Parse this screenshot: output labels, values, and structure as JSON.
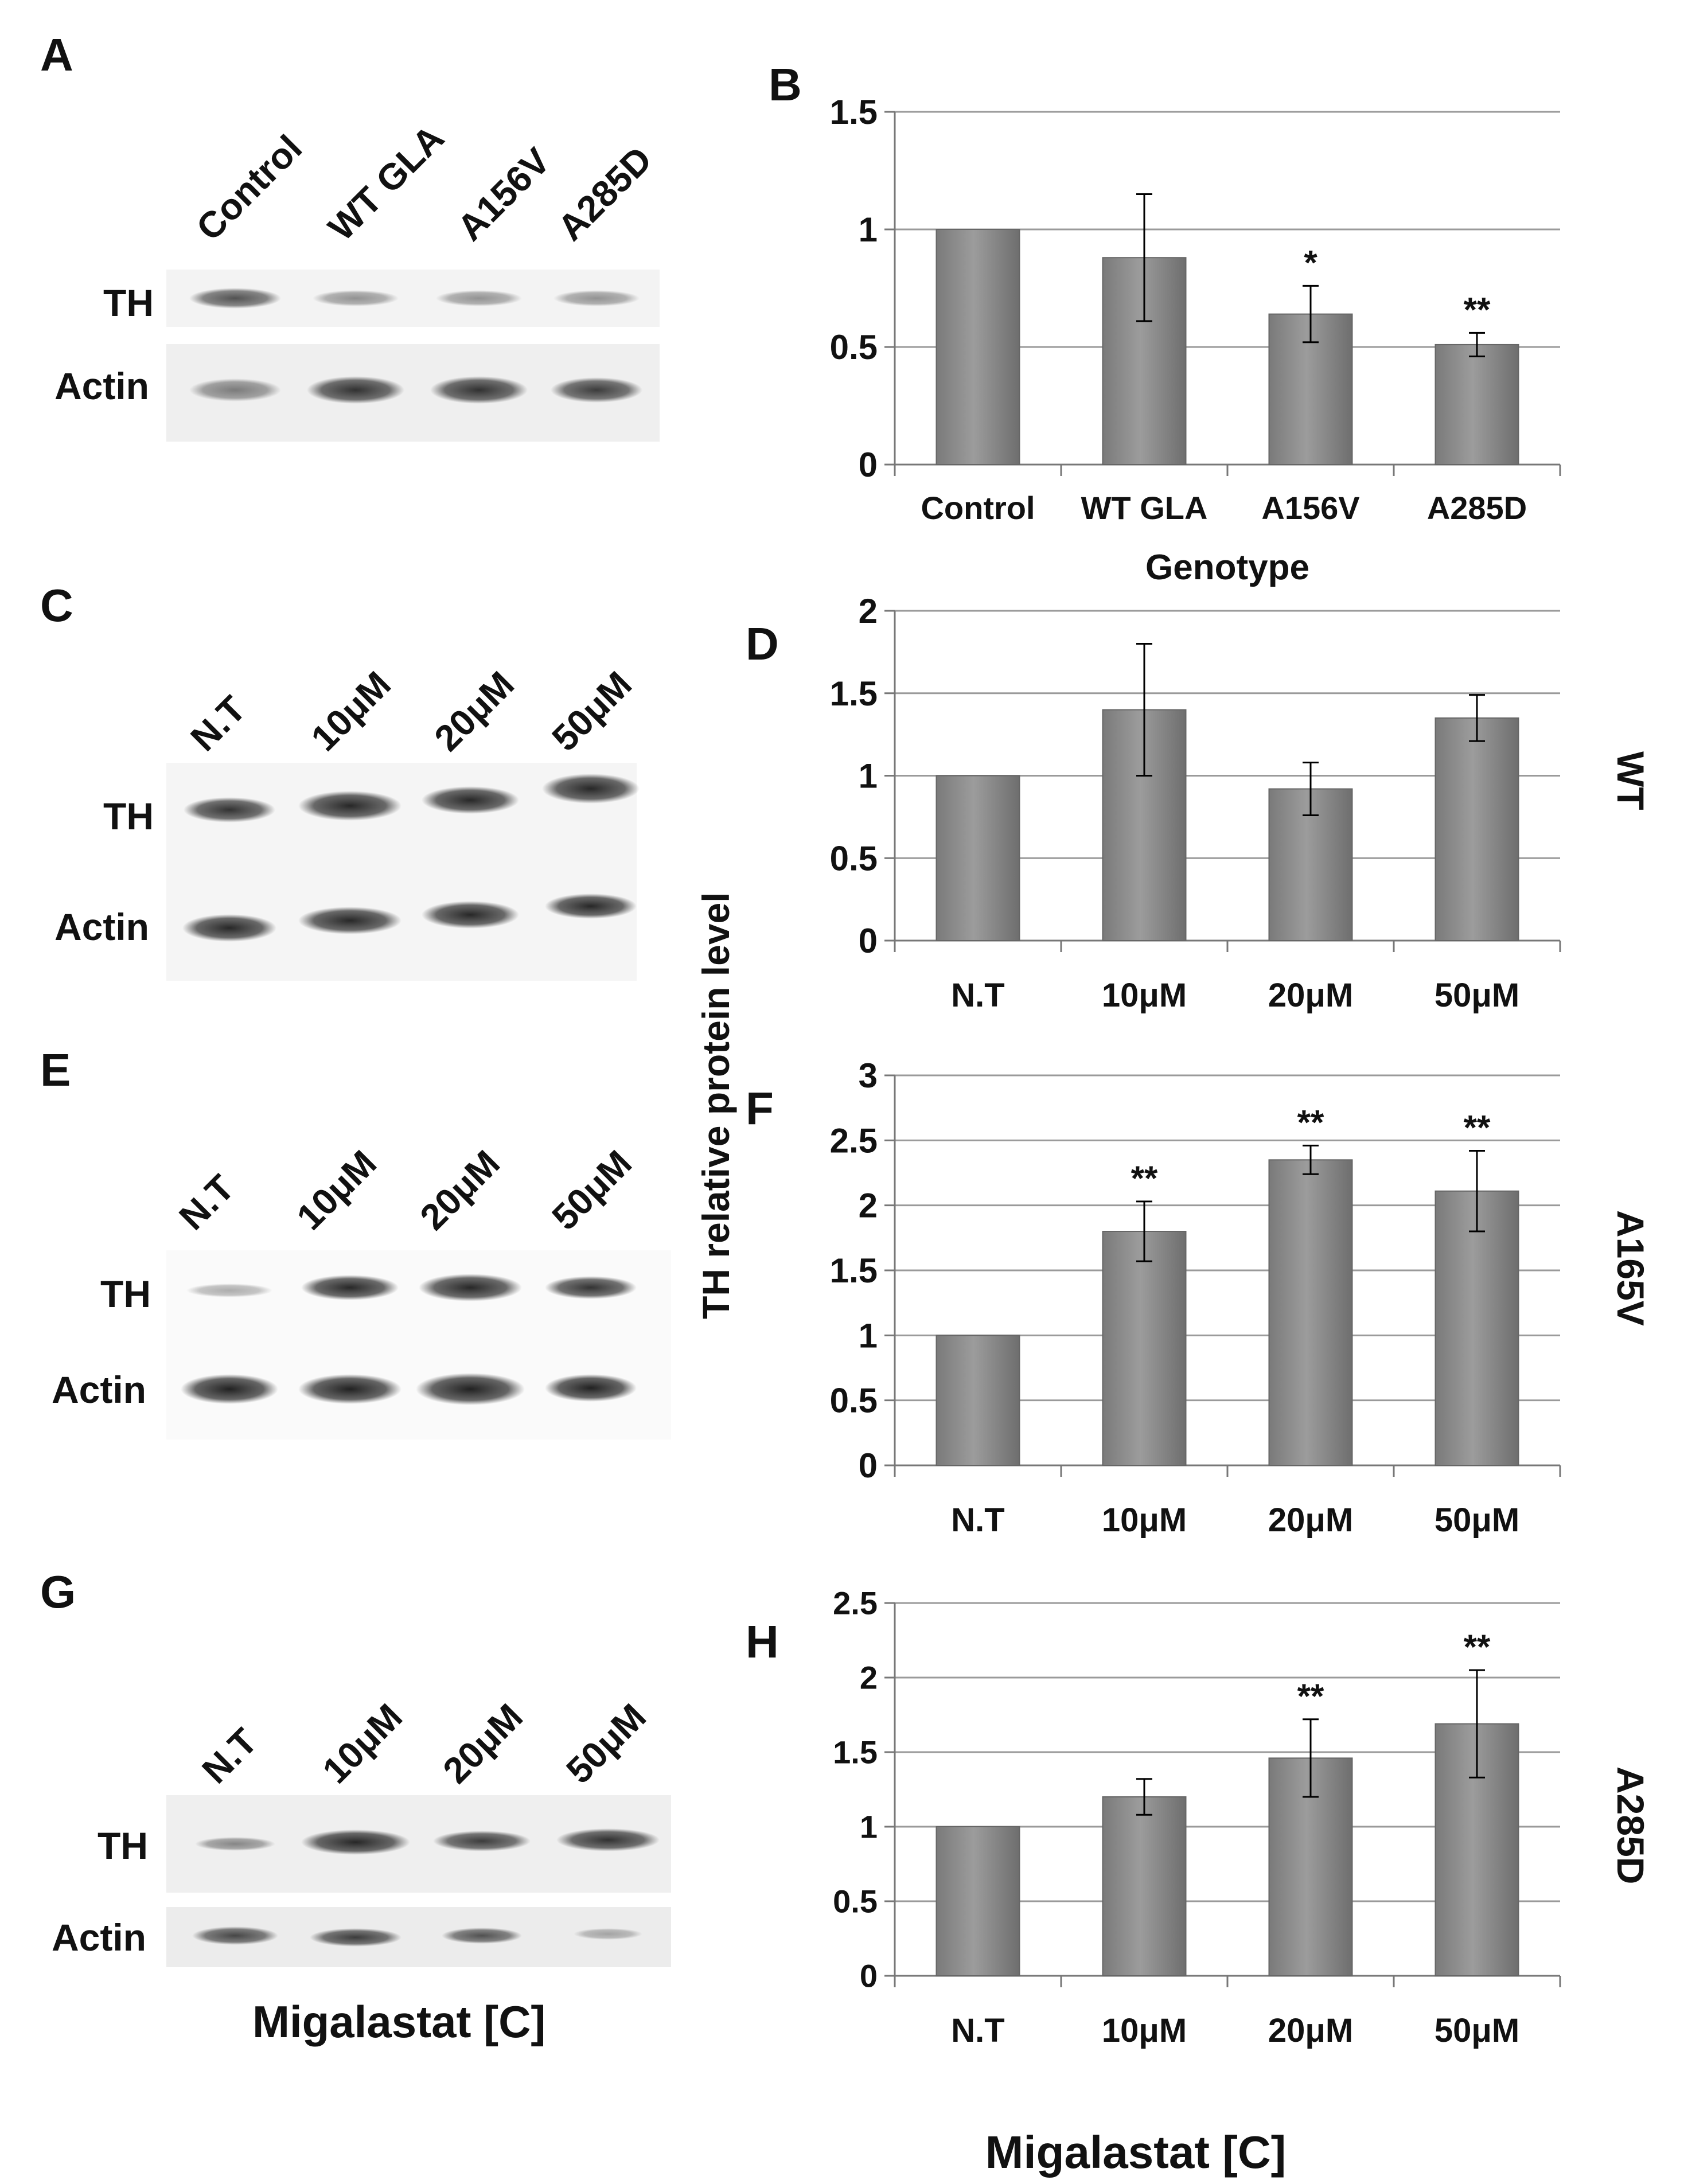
{
  "panels": {
    "A": {
      "letter": "A",
      "lanes": [
        "Control",
        "WT GLA",
        "A156V",
        "A285D"
      ],
      "rows": [
        "TH",
        "Actin"
      ]
    },
    "C": {
      "letter": "C",
      "lanes": [
        "N.T",
        "10μM",
        "20μM",
        "50μM"
      ],
      "rows": [
        "TH",
        "Actin"
      ]
    },
    "E": {
      "letter": "E",
      "lanes": [
        "N.T",
        "10μM",
        "20μM",
        "50μM"
      ],
      "rows": [
        "TH",
        "Actin"
      ]
    },
    "G": {
      "letter": "G",
      "lanes": [
        "N.T",
        "10μM",
        "20μM",
        "50μM"
      ],
      "rows": [
        "TH",
        "Actin"
      ],
      "xlabel": "Migalastat [C]"
    }
  },
  "shared_ylabel": "TH relative protein level",
  "chart_data": [
    {
      "id": "B",
      "type": "bar",
      "letter": "B",
      "categories": [
        "Control",
        "WT GLA",
        "A156V",
        "A285D"
      ],
      "values": [
        1.0,
        0.88,
        0.64,
        0.51
      ],
      "errors": [
        0.0,
        0.27,
        0.12,
        0.05
      ],
      "annotations": [
        "",
        "",
        "*",
        "**"
      ],
      "ylim": [
        0,
        1.5
      ],
      "yticks": [
        0,
        0.5,
        1,
        1.5
      ],
      "ytick_labels": [
        "0",
        "0.5",
        "1",
        "1.5"
      ],
      "xlabel": "Genotype",
      "side_label": "",
      "grid": true
    },
    {
      "id": "D",
      "type": "bar",
      "letter": "D",
      "categories": [
        "N.T",
        "10μM",
        "20μM",
        "50μM"
      ],
      "values": [
        1.0,
        1.4,
        0.92,
        1.35
      ],
      "errors": [
        0.0,
        0.4,
        0.16,
        0.14
      ],
      "annotations": [
        "",
        "",
        "",
        ""
      ],
      "ylim": [
        0,
        2
      ],
      "yticks": [
        0,
        0.5,
        1,
        1.5,
        2
      ],
      "ytick_labels": [
        "0",
        "0.5",
        "1",
        "1.5",
        "2"
      ],
      "xlabel": "",
      "side_label": "WT",
      "grid": true
    },
    {
      "id": "F",
      "type": "bar",
      "letter": "F",
      "categories": [
        "N.T",
        "10μM",
        "20μM",
        "50μM"
      ],
      "values": [
        1.0,
        1.8,
        2.35,
        2.11
      ],
      "errors": [
        0.0,
        0.23,
        0.11,
        0.31
      ],
      "annotations": [
        "",
        "**",
        "**",
        "**"
      ],
      "ylim": [
        0,
        3
      ],
      "yticks": [
        0,
        0.5,
        1,
        1.5,
        2,
        2.5,
        3
      ],
      "ytick_labels": [
        "0",
        "0.5",
        "1",
        "1.5",
        "2",
        "2.5",
        "3"
      ],
      "xlabel": "",
      "side_label": "A165V",
      "grid": true
    },
    {
      "id": "H",
      "type": "bar",
      "letter": "H",
      "categories": [
        "N.T",
        "10μM",
        "20μM",
        "50μM"
      ],
      "values": [
        1.0,
        1.2,
        1.46,
        1.69
      ],
      "errors": [
        0.0,
        0.12,
        0.26,
        0.36
      ],
      "annotations": [
        "",
        "",
        "**",
        "**"
      ],
      "ylim": [
        0,
        2.5
      ],
      "yticks": [
        0,
        0.5,
        1,
        1.5,
        2,
        2.5
      ],
      "ytick_labels": [
        "0",
        "0.5",
        "1",
        "1.5",
        "2",
        "2.5"
      ],
      "xlabel": "Migalastat [C]",
      "side_label": "A285D",
      "grid": true
    }
  ]
}
